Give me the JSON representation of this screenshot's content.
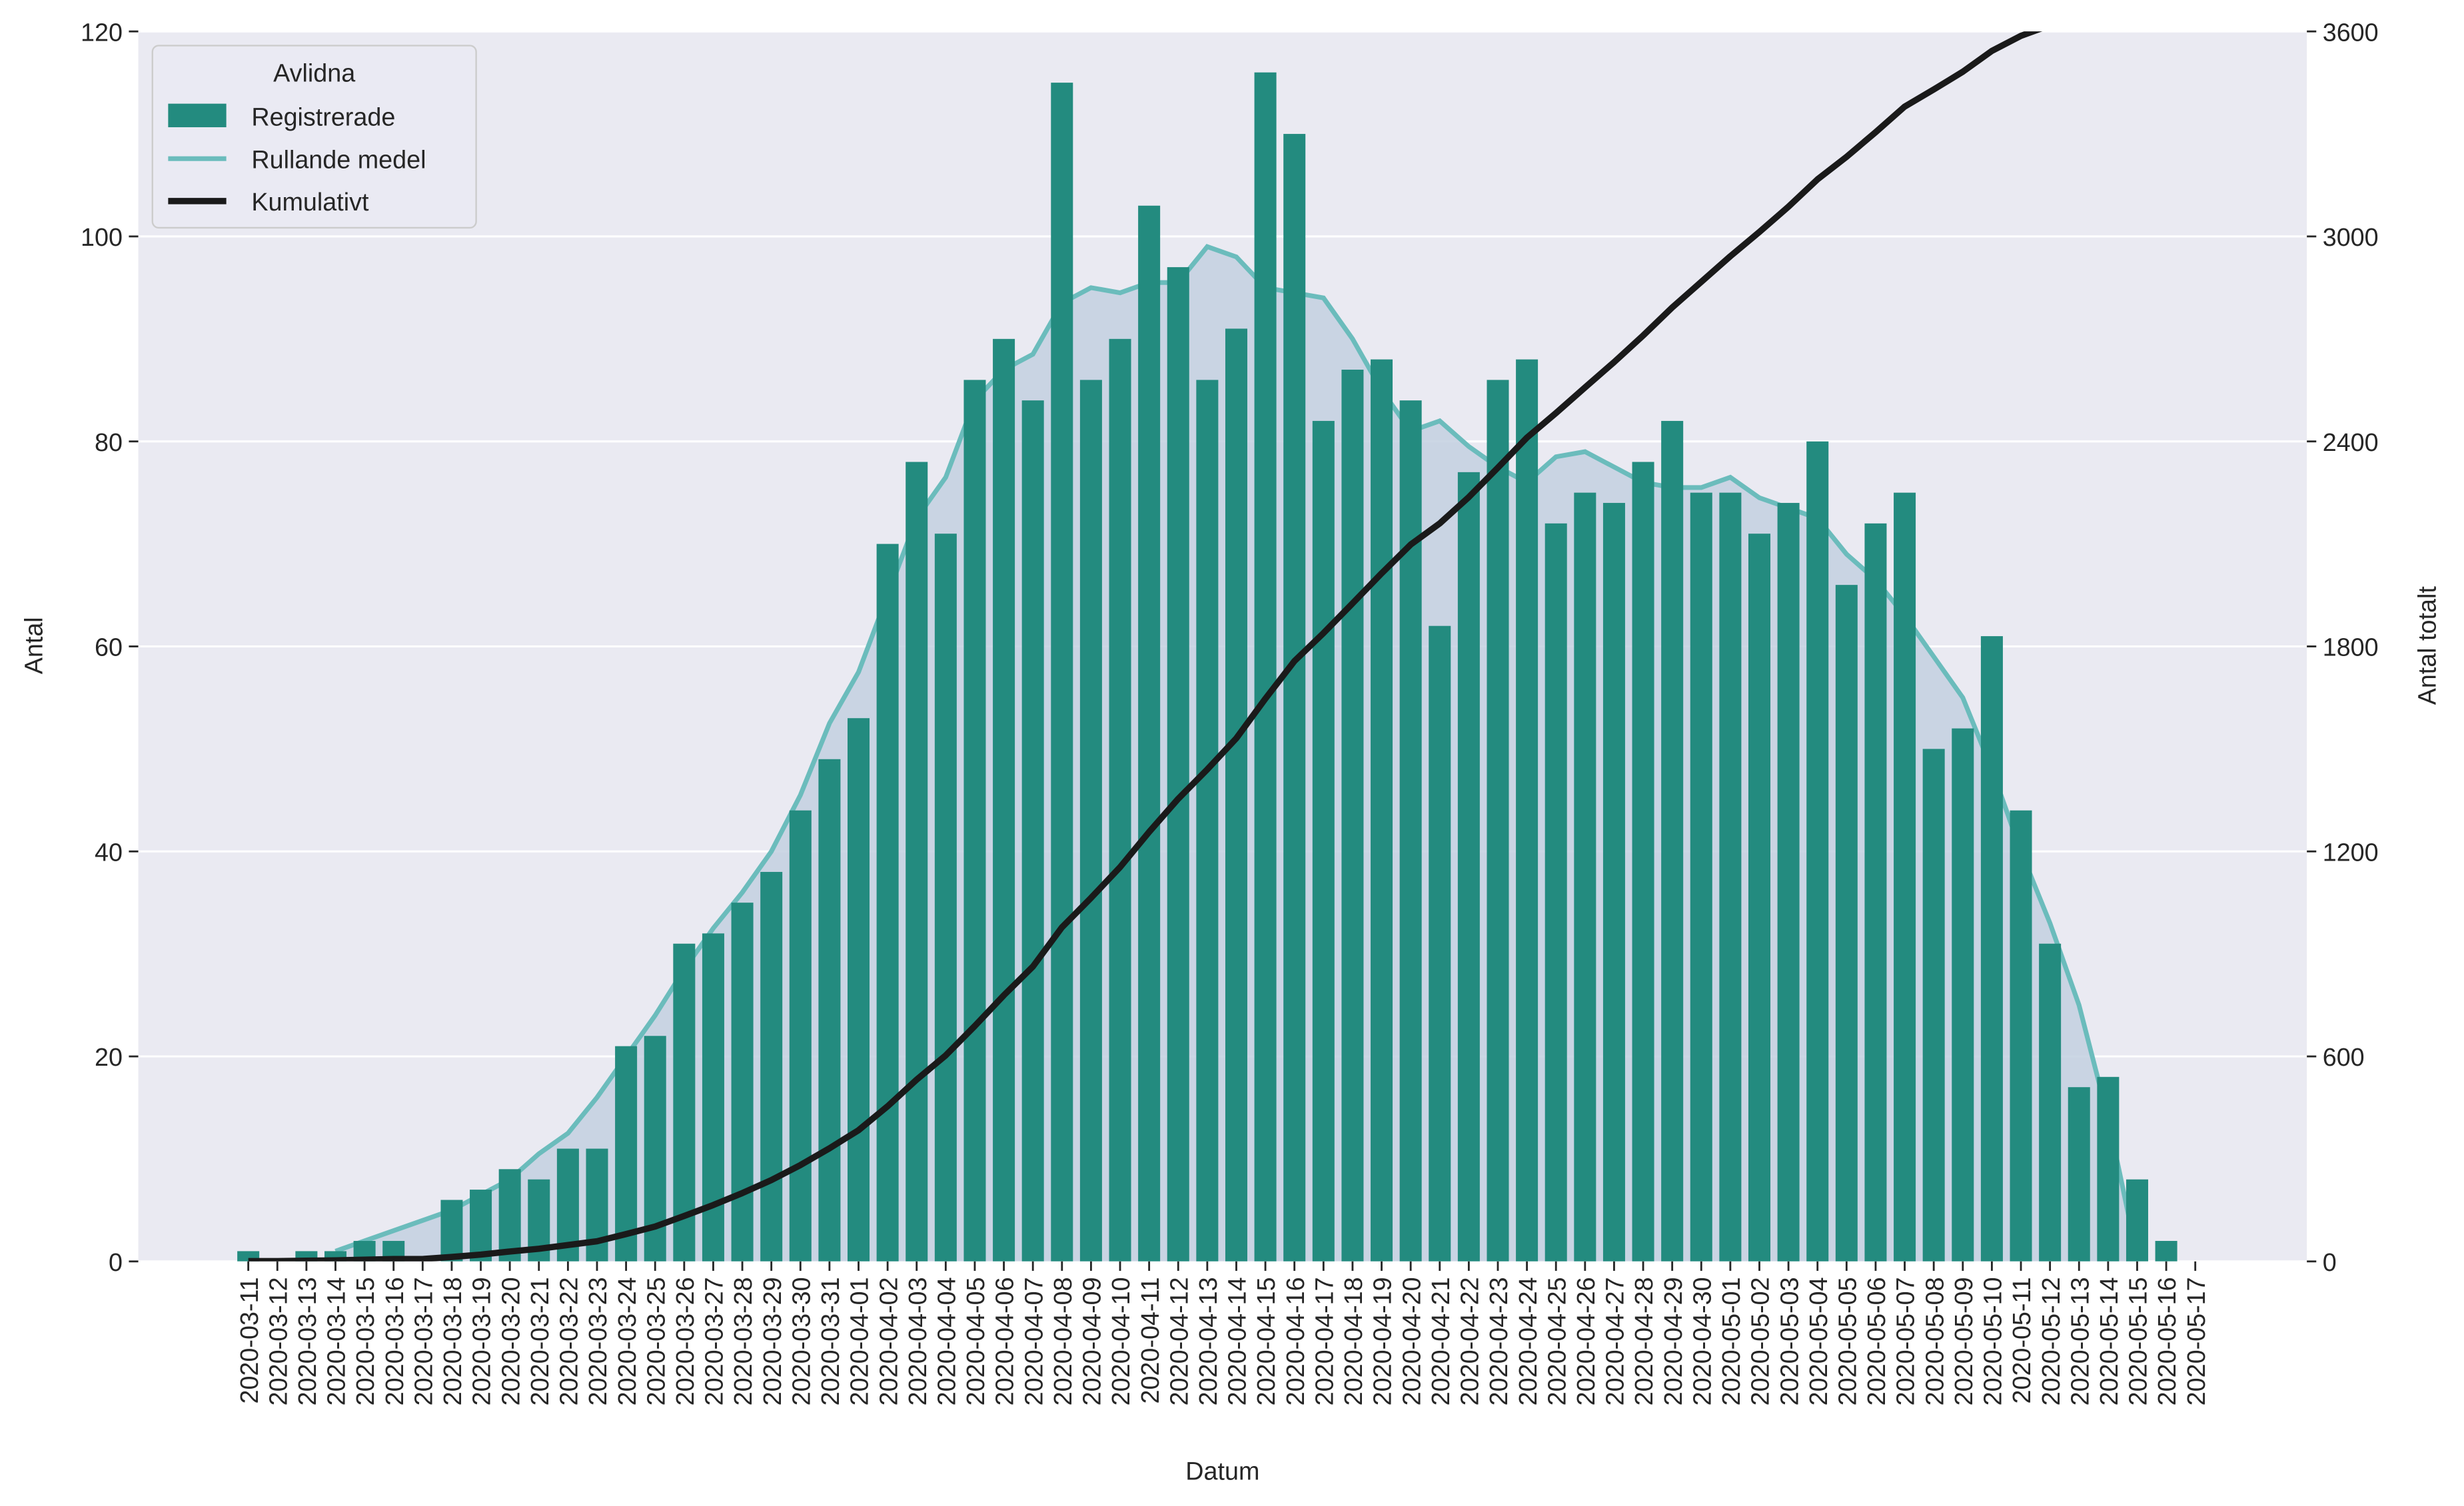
{
  "chart_data": {
    "type": "bar",
    "categories": [
      "2020-03-11",
      "2020-03-12",
      "2020-03-13",
      "2020-03-14",
      "2020-03-15",
      "2020-03-16",
      "2020-03-17",
      "2020-03-18",
      "2020-03-19",
      "2020-03-20",
      "2020-03-21",
      "2020-03-22",
      "2020-03-23",
      "2020-03-24",
      "2020-03-25",
      "2020-03-26",
      "2020-03-27",
      "2020-03-28",
      "2020-03-29",
      "2020-03-30",
      "2020-03-31",
      "2020-04-01",
      "2020-04-02",
      "2020-04-03",
      "2020-04-04",
      "2020-04-05",
      "2020-04-06",
      "2020-04-07",
      "2020-04-08",
      "2020-04-09",
      "2020-04-10",
      "2020-04-11",
      "2020-04-12",
      "2020-04-13",
      "2020-04-14",
      "2020-04-15",
      "2020-04-16",
      "2020-04-17",
      "2020-04-18",
      "2020-04-19",
      "2020-04-20",
      "2020-04-21",
      "2020-04-22",
      "2020-04-23",
      "2020-04-24",
      "2020-04-25",
      "2020-04-26",
      "2020-04-27",
      "2020-04-28",
      "2020-04-29",
      "2020-04-30",
      "2020-05-01",
      "2020-05-02",
      "2020-05-03",
      "2020-05-04",
      "2020-05-05",
      "2020-05-06",
      "2020-05-07",
      "2020-05-08",
      "2020-05-09",
      "2020-05-10",
      "2020-05-11",
      "2020-05-12",
      "2020-05-13",
      "2020-05-14",
      "2020-05-15",
      "2020-05-16",
      "2020-05-17"
    ],
    "series": [
      {
        "name": "Registrerade",
        "color": "#238b7f",
        "kind": "bar",
        "values": [
          1,
          0,
          1,
          1,
          2,
          2,
          0,
          6,
          7,
          9,
          8,
          11,
          11,
          21,
          22,
          31,
          32,
          35,
          38,
          44,
          49,
          53,
          70,
          78,
          71,
          86,
          90,
          84,
          115,
          86,
          90,
          103,
          97,
          86,
          91,
          116,
          110,
          82,
          87,
          88,
          84,
          62,
          77,
          86,
          88,
          72,
          75,
          74,
          78,
          82,
          75,
          75,
          71,
          74,
          80,
          66,
          72,
          75,
          50,
          52,
          61,
          44,
          31,
          17,
          18,
          8,
          2,
          0
        ]
      },
      {
        "name": "Rullande medel",
        "color": "#6bbcbc",
        "fill": "#c3d0e0",
        "kind": "area",
        "values": [
          null,
          null,
          null,
          1,
          2,
          3,
          4,
          5,
          6.5,
          8,
          10.5,
          12.5,
          16,
          20,
          24,
          28.5,
          32.5,
          36,
          40,
          45.5,
          52.5,
          57.5,
          65,
          72.5,
          76.5,
          84,
          87,
          88.5,
          93.5,
          95,
          94.5,
          95.5,
          95.5,
          99,
          98,
          95,
          94.5,
          94,
          90,
          85,
          81,
          82,
          79.5,
          77.5,
          76,
          78.5,
          79,
          77.5,
          76,
          75.5,
          75.5,
          76.5,
          74.5,
          73.5,
          72.5,
          69,
          66.5,
          63,
          59,
          55,
          48,
          40,
          33,
          25,
          14,
          0.5,
          null,
          null
        ]
      },
      {
        "name": "Kumulativt",
        "color": "#1a1a1a",
        "kind": "line",
        "axis": "y2",
        "values": [
          1,
          1,
          2,
          3,
          5,
          7,
          7,
          13,
          20,
          29,
          37,
          48,
          59,
          80,
          102,
          133,
          165,
          200,
          238,
          282,
          331,
          384,
          454,
          532,
          603,
          689,
          779,
          863,
          978,
          1064,
          1154,
          1257,
          1354,
          1440,
          1531,
          1647,
          1757,
          1839,
          1926,
          2014,
          2098,
          2160,
          2237,
          2323,
          2411,
          2483,
          2558,
          2632,
          2710,
          2792,
          2867,
          2942,
          3013,
          3087,
          3167,
          3233,
          3305,
          3380,
          3430,
          3482,
          3543,
          3587,
          3618,
          3635,
          3653,
          3661,
          3663,
          3663
        ]
      }
    ],
    "xlabel": "Datum",
    "ylabel": "Antal",
    "y2label": "Antal totalt",
    "legend_title": "Avlidna",
    "legend": "upper left",
    "ylim": [
      0,
      120
    ],
    "yticks": [
      0,
      20,
      40,
      60,
      80,
      100,
      120
    ],
    "y2lim": [
      0,
      3600
    ],
    "y2ticks": [
      0,
      600,
      1200,
      1800,
      2400,
      3000,
      3600
    ],
    "grid": true
  }
}
